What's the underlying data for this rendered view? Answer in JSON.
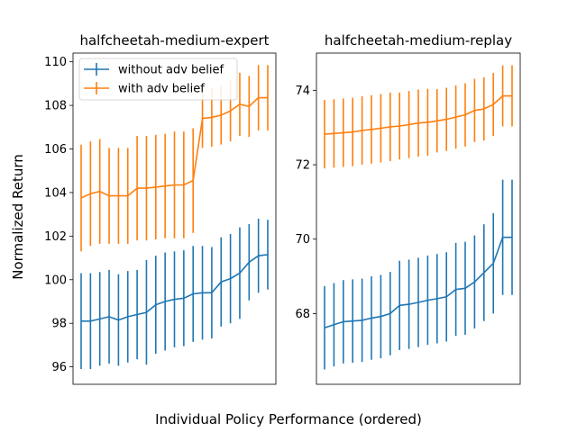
{
  "figure": {
    "xlabel": "Individual Policy Performance (ordered)",
    "ylabel": "Normalized Return"
  },
  "colors": {
    "without": "#1f77b4",
    "with": "#ff7f0e"
  },
  "chart_data": [
    {
      "type": "line",
      "title": "halfcheetah-medium-expert",
      "xlabel": "",
      "ylabel": "Normalized Return",
      "ylim": [
        95.2,
        110.4
      ],
      "yticks": [
        96,
        98,
        100,
        102,
        104,
        106,
        108,
        110
      ],
      "x": [
        1,
        2,
        3,
        4,
        5,
        6,
        7,
        8,
        9,
        10,
        11,
        12,
        13,
        14,
        15,
        16,
        17,
        18,
        19,
        20,
        21
      ],
      "grid": false,
      "legend": "top-left",
      "series": [
        {
          "name": "without adv belief",
          "color": "#1f77b4",
          "values": [
            98.1,
            98.1,
            98.2,
            98.3,
            98.15,
            98.3,
            98.4,
            98.5,
            98.85,
            99.0,
            99.1,
            99.15,
            99.35,
            99.4,
            99.4,
            99.9,
            100.05,
            100.3,
            100.8,
            101.1,
            101.15
          ],
          "error": [
            2.2,
            2.2,
            2.15,
            2.15,
            2.1,
            2.1,
            2.05,
            2.4,
            2.25,
            2.25,
            2.2,
            2.2,
            2.2,
            2.15,
            2.1,
            2.05,
            2.05,
            2.1,
            1.75,
            1.7,
            1.6
          ]
        },
        {
          "name": "with adv belief",
          "color": "#ff7f0e",
          "values": [
            103.75,
            103.95,
            104.05,
            103.85,
            103.85,
            103.85,
            104.2,
            104.2,
            104.25,
            104.3,
            104.35,
            104.35,
            104.55,
            107.4,
            107.45,
            107.55,
            107.75,
            108.05,
            107.95,
            108.35,
            108.35
          ],
          "error": [
            2.45,
            2.4,
            2.4,
            2.2,
            2.2,
            2.2,
            2.4,
            2.4,
            2.4,
            2.4,
            2.45,
            2.45,
            2.4,
            1.35,
            1.35,
            1.35,
            1.4,
            1.45,
            1.4,
            1.5,
            1.5
          ]
        }
      ]
    },
    {
      "type": "line",
      "title": "halfcheetah-medium-replay",
      "xlabel": "",
      "ylabel": "",
      "ylim": [
        66.1,
        75.0
      ],
      "yticks": [
        68,
        70,
        72,
        74
      ],
      "x": [
        1,
        2,
        3,
        4,
        5,
        6,
        7,
        8,
        9,
        10,
        11,
        12,
        13,
        14,
        15,
        16,
        17,
        18,
        19,
        20,
        21
      ],
      "grid": false,
      "legend": "none",
      "series": [
        {
          "name": "without adv belief",
          "color": "#1f77b4",
          "values": [
            67.62,
            67.7,
            67.78,
            67.8,
            67.82,
            67.88,
            67.92,
            68.0,
            68.22,
            68.25,
            68.3,
            68.36,
            68.4,
            68.45,
            68.65,
            68.68,
            68.85,
            69.1,
            69.35,
            70.05,
            70.05
          ],
          "error": [
            1.12,
            1.12,
            1.12,
            1.12,
            1.12,
            1.12,
            1.12,
            1.12,
            1.2,
            1.2,
            1.2,
            1.2,
            1.2,
            1.2,
            1.25,
            1.25,
            1.25,
            1.3,
            1.35,
            1.55,
            1.55
          ]
        },
        {
          "name": "with adv belief",
          "color": "#ff7f0e",
          "values": [
            72.82,
            72.84,
            72.86,
            72.88,
            72.92,
            72.95,
            72.98,
            73.02,
            73.04,
            73.08,
            73.12,
            73.14,
            73.18,
            73.22,
            73.28,
            73.34,
            73.46,
            73.5,
            73.62,
            73.85,
            73.85
          ],
          "error": [
            0.92,
            0.92,
            0.92,
            0.92,
            0.92,
            0.92,
            0.92,
            0.92,
            0.9,
            0.9,
            0.9,
            0.9,
            0.85,
            0.85,
            0.85,
            0.85,
            0.85,
            0.85,
            0.85,
            0.82,
            0.82
          ]
        }
      ]
    }
  ]
}
